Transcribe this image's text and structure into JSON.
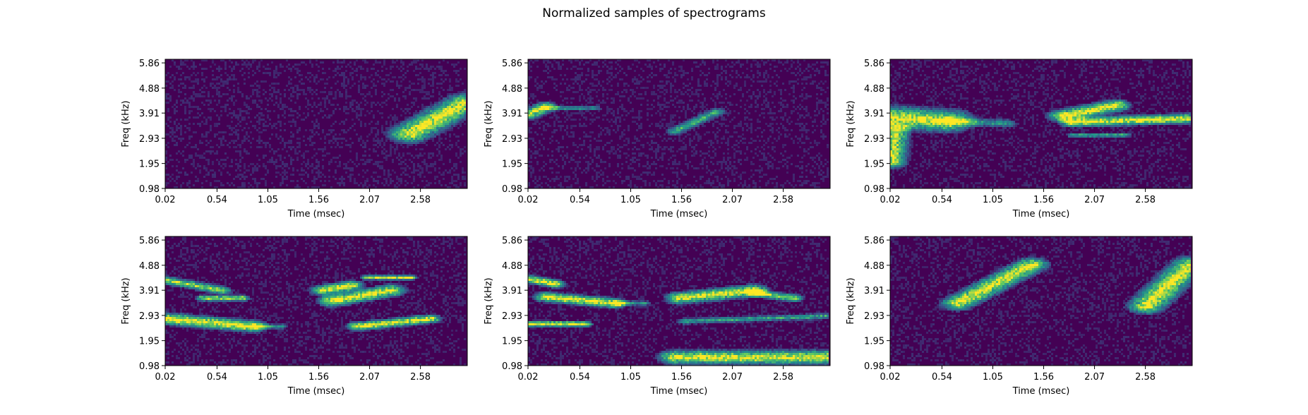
{
  "figure": {
    "title": "Normalized samples of spectrograms"
  },
  "colors": {
    "background": "#440154",
    "noise": "#3b528b",
    "mid": "#21918c",
    "high": "#5ec962",
    "peak": "#fde725"
  },
  "chart_data": [
    {
      "type": "heatmap",
      "title": "",
      "xlabel": "Time (msec)",
      "ylabel": "Freq (kHz)",
      "xticks": [
        "0.02",
        "0.54",
        "1.05",
        "1.56",
        "2.07",
        "2.58"
      ],
      "yticks": [
        "5.86",
        "4.88",
        "3.91",
        "2.93",
        "1.95",
        "0.98"
      ],
      "xlim": [
        0.02,
        3.05
      ],
      "ylim": [
        0.98,
        6.0
      ],
      "colormap": "viridis",
      "features": [
        {
          "t0": 2.48,
          "f0": 3.1,
          "t1": 3.05,
          "f1": 4.3,
          "width": 0.45,
          "intensity": 1.0
        }
      ]
    },
    {
      "type": "heatmap",
      "title": "",
      "xlabel": "Time (msec)",
      "ylabel": "Freq (kHz)",
      "xticks": [
        "0.02",
        "0.54",
        "1.05",
        "1.56",
        "2.07",
        "2.58"
      ],
      "yticks": [
        "5.86",
        "4.88",
        "3.91",
        "2.93",
        "1.95",
        "0.98"
      ],
      "xlim": [
        0.02,
        3.05
      ],
      "ylim": [
        0.98,
        6.0
      ],
      "colormap": "viridis",
      "features": [
        {
          "t0": 0.02,
          "f0": 3.85,
          "t1": 0.2,
          "f1": 4.15,
          "width": 0.25,
          "intensity": 0.9
        },
        {
          "t0": 0.2,
          "f0": 4.1,
          "t1": 0.7,
          "f1": 4.1,
          "width": 0.12,
          "intensity": 0.5
        },
        {
          "t0": 1.5,
          "f0": 3.2,
          "t1": 1.92,
          "f1": 3.95,
          "width": 0.18,
          "intensity": 0.6
        }
      ]
    },
    {
      "type": "heatmap",
      "title": "",
      "xlabel": "Time (msec)",
      "ylabel": "Freq (kHz)",
      "xticks": [
        "0.02",
        "0.54",
        "1.05",
        "1.56",
        "2.07",
        "2.58"
      ],
      "yticks": [
        "5.86",
        "4.88",
        "3.91",
        "2.93",
        "1.95",
        "0.98"
      ],
      "xlim": [
        0.02,
        3.05
      ],
      "ylim": [
        0.98,
        6.0
      ],
      "colormap": "viridis",
      "features": [
        {
          "t0": 0.02,
          "f0": 3.75,
          "t1": 0.6,
          "f1": 3.6,
          "width": 0.55,
          "intensity": 1.0
        },
        {
          "t0": 0.6,
          "f0": 3.6,
          "t1": 1.2,
          "f1": 3.5,
          "width": 0.2,
          "intensity": 0.5
        },
        {
          "t0": 0.05,
          "f0": 2.0,
          "t1": 0.08,
          "f1": 3.3,
          "width": 0.3,
          "intensity": 0.9
        },
        {
          "t0": 1.75,
          "f0": 3.8,
          "t1": 2.3,
          "f1": 4.2,
          "width": 0.3,
          "intensity": 1.0
        },
        {
          "t0": 1.85,
          "f0": 3.55,
          "t1": 3.05,
          "f1": 3.7,
          "width": 0.25,
          "intensity": 1.0
        },
        {
          "t0": 1.85,
          "f0": 3.05,
          "t1": 2.4,
          "f1": 3.05,
          "width": 0.1,
          "intensity": 0.7
        }
      ]
    },
    {
      "type": "heatmap",
      "title": "",
      "xlabel": "Time (msec)",
      "ylabel": "Freq (kHz)",
      "xticks": [
        "0.02",
        "0.54",
        "1.05",
        "1.56",
        "2.07",
        "2.58"
      ],
      "yticks": [
        "5.86",
        "4.88",
        "3.91",
        "2.93",
        "1.95",
        "0.98"
      ],
      "xlim": [
        0.02,
        3.05
      ],
      "ylim": [
        0.98,
        6.0
      ],
      "colormap": "viridis",
      "features": [
        {
          "t0": 0.02,
          "f0": 4.3,
          "t1": 0.6,
          "f1": 3.9,
          "width": 0.2,
          "intensity": 0.8
        },
        {
          "t0": 0.4,
          "f0": 3.6,
          "t1": 0.8,
          "f1": 3.6,
          "width": 0.15,
          "intensity": 0.9
        },
        {
          "t0": 0.02,
          "f0": 2.8,
          "t1": 0.9,
          "f1": 2.5,
          "width": 0.3,
          "intensity": 1.0
        },
        {
          "t0": 0.9,
          "f0": 2.5,
          "t1": 1.2,
          "f1": 2.5,
          "width": 0.12,
          "intensity": 0.5
        },
        {
          "t0": 1.6,
          "f0": 3.9,
          "t1": 1.9,
          "f1": 4.1,
          "width": 0.25,
          "intensity": 1.0
        },
        {
          "t0": 1.7,
          "f0": 3.5,
          "t1": 2.3,
          "f1": 3.9,
          "width": 0.3,
          "intensity": 1.0
        },
        {
          "t0": 2.05,
          "f0": 4.4,
          "t1": 2.5,
          "f1": 4.4,
          "width": 0.12,
          "intensity": 0.9
        },
        {
          "t0": 1.95,
          "f0": 2.5,
          "t1": 2.7,
          "f1": 2.8,
          "width": 0.22,
          "intensity": 1.0
        }
      ]
    },
    {
      "type": "heatmap",
      "title": "",
      "xlabel": "Time (msec)",
      "ylabel": "Freq (kHz)",
      "xticks": [
        "0.02",
        "0.54",
        "1.05",
        "1.56",
        "2.07",
        "2.58"
      ],
      "yticks": [
        "5.86",
        "4.88",
        "3.91",
        "2.93",
        "1.95",
        "0.98"
      ],
      "xlim": [
        0.02,
        3.05
      ],
      "ylim": [
        0.98,
        6.0
      ],
      "colormap": "viridis",
      "features": [
        {
          "t0": 0.02,
          "f0": 4.35,
          "t1": 0.3,
          "f1": 4.15,
          "width": 0.2,
          "intensity": 1.0
        },
        {
          "t0": 0.2,
          "f0": 3.65,
          "t1": 0.9,
          "f1": 3.4,
          "width": 0.25,
          "intensity": 1.0
        },
        {
          "t0": 0.9,
          "f0": 3.4,
          "t1": 1.2,
          "f1": 3.4,
          "width": 0.12,
          "intensity": 0.5
        },
        {
          "t0": 0.02,
          "f0": 2.6,
          "t1": 0.6,
          "f1": 2.6,
          "width": 0.15,
          "intensity": 1.0
        },
        {
          "t0": 1.55,
          "f0": 3.6,
          "t1": 2.3,
          "f1": 3.9,
          "width": 0.3,
          "intensity": 1.0
        },
        {
          "t0": 2.3,
          "f0": 3.8,
          "t1": 2.7,
          "f1": 3.6,
          "width": 0.2,
          "intensity": 0.8
        },
        {
          "t0": 1.5,
          "f0": 1.3,
          "t1": 3.05,
          "f1": 1.3,
          "width": 0.35,
          "intensity": 1.0
        },
        {
          "t0": 1.6,
          "f0": 2.7,
          "t1": 3.05,
          "f1": 2.9,
          "width": 0.15,
          "intensity": 0.55
        }
      ]
    },
    {
      "type": "heatmap",
      "title": "",
      "xlabel": "Time (msec)",
      "ylabel": "Freq (kHz)",
      "xticks": [
        "0.02",
        "0.54",
        "1.05",
        "1.56",
        "2.07",
        "2.58"
      ],
      "yticks": [
        "5.86",
        "4.88",
        "3.91",
        "2.93",
        "1.95",
        "0.98"
      ],
      "xlim": [
        0.02,
        3.05
      ],
      "ylim": [
        0.98,
        6.0
      ],
      "colormap": "viridis",
      "features": [
        {
          "t0": 0.7,
          "f0": 3.4,
          "t1": 1.45,
          "f1": 4.9,
          "width": 0.35,
          "intensity": 1.0
        },
        {
          "t0": 2.6,
          "f0": 3.3,
          "t1": 3.05,
          "f1": 4.9,
          "width": 0.4,
          "intensity": 1.0
        }
      ]
    }
  ]
}
